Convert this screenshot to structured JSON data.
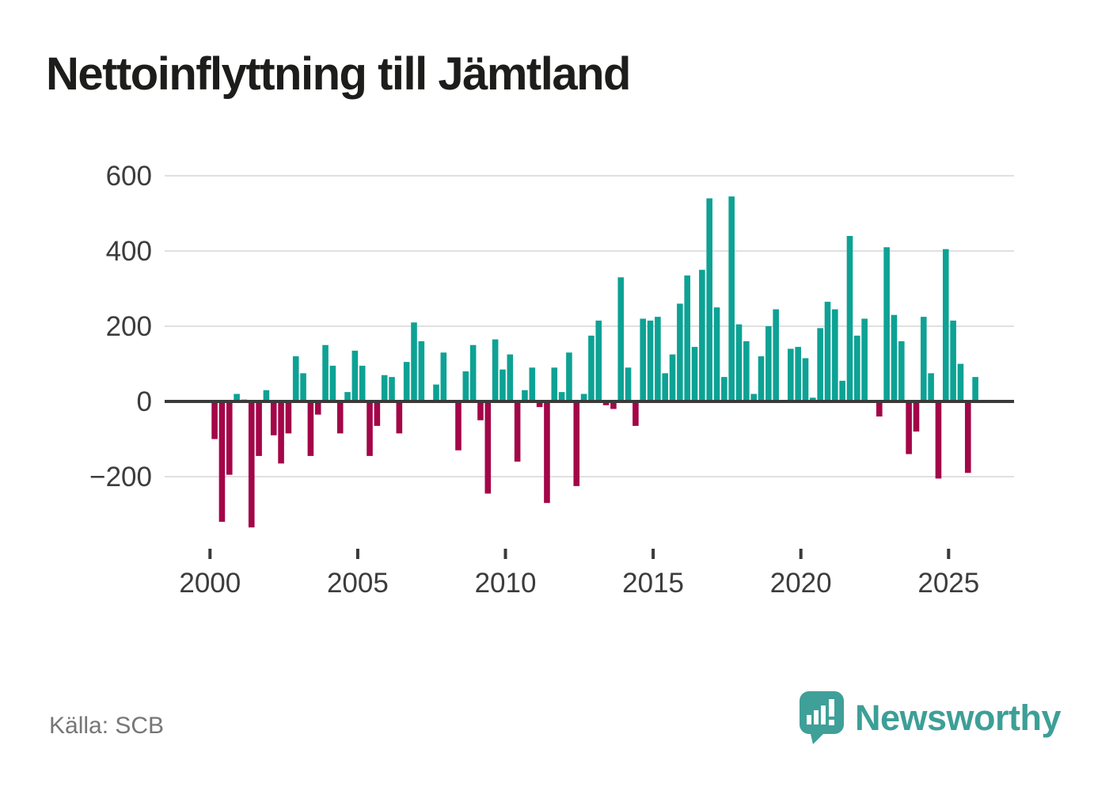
{
  "header": {
    "title": "Nettoinflyttning till Jämtland"
  },
  "footer": {
    "source": "Källa: SCB",
    "logo_text": "Newsworthy"
  },
  "colors": {
    "positive_bar": "#0da294",
    "negative_bar": "#a30648",
    "gridline": "#e0e0e0",
    "zero_line": "#3a3a3a",
    "axis_text": "#3c3c3c",
    "logo_teal": "#3fa099"
  },
  "chart_data": {
    "type": "bar",
    "title": "Nettoinflyttning till Jämtland",
    "xlabel": "",
    "ylabel": "",
    "frequency": "quarterly",
    "start_period": "2000 Q1",
    "end_period": "2025 Q4",
    "y_ticks": [
      600,
      400,
      200,
      0,
      -200
    ],
    "ylim": [
      -400,
      620
    ],
    "x_tick_years": [
      "2000",
      "2005",
      "2010",
      "2015",
      "2020",
      "2025"
    ],
    "grid": "horizontal",
    "legend": "none",
    "values": [
      -100,
      -320,
      -195,
      20,
      5,
      -335,
      -145,
      30,
      -90,
      -165,
      -85,
      120,
      75,
      -145,
      -35,
      150,
      95,
      -85,
      25,
      135,
      95,
      -145,
      -65,
      70,
      65,
      -85,
      105,
      210,
      160,
      0,
      45,
      130,
      0,
      -130,
      80,
      150,
      -50,
      -245,
      165,
      85,
      125,
      -160,
      30,
      90,
      -15,
      -270,
      90,
      25,
      130,
      -225,
      20,
      175,
      215,
      -10,
      -20,
      330,
      90,
      -65,
      220,
      215,
      225,
      75,
      125,
      260,
      335,
      145,
      350,
      540,
      250,
      65,
      545,
      205,
      160,
      20,
      120,
      200,
      245,
      0,
      140,
      145,
      115,
      10,
      195,
      265,
      245,
      55,
      440,
      175,
      220,
      0,
      -40,
      410,
      230,
      160,
      -140,
      -80,
      225,
      75,
      -205,
      405,
      215,
      100,
      -190,
      65
    ]
  }
}
